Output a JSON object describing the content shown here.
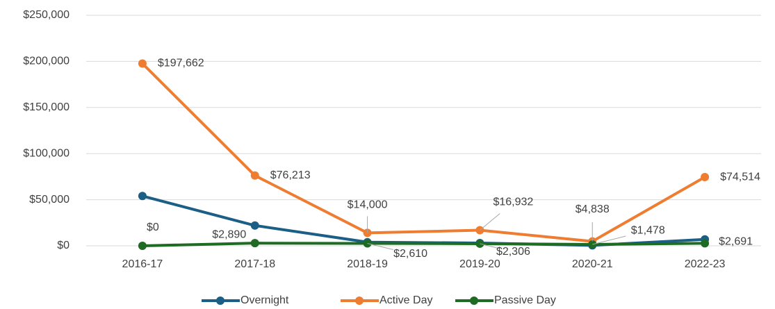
{
  "chart_data": {
    "type": "line",
    "categories": [
      "2016-17",
      "2017-18",
      "2018-19",
      "2019-20",
      "2020-21",
      "2022-23"
    ],
    "series": [
      {
        "name": "Overnight",
        "color": "#1b5e86",
        "values": [
          54000,
          22000,
          4000,
          3000,
          500,
          7000
        ]
      },
      {
        "name": "Active Day",
        "color": "#ee7d31",
        "values": [
          197662,
          76213,
          14000,
          16932,
          4838,
          74514
        ],
        "value_labels": [
          "$197,662",
          "$76,213",
          "$14,000",
          "$16,932",
          "$4,838",
          "$74,514"
        ]
      },
      {
        "name": "Passive Day",
        "color": "#1e6b23",
        "values": [
          0,
          2890,
          2610,
          2306,
          1478,
          2691
        ],
        "value_labels": [
          "$0",
          "$2,890",
          "$2,610",
          "$2,306",
          "$1,478",
          "$2,691"
        ]
      }
    ],
    "ylim": [
      0,
      250000
    ],
    "yticks": [
      {
        "value": 0,
        "label": "$0"
      },
      {
        "value": 50000,
        "label": "$50,000"
      },
      {
        "value": 100000,
        "label": "$100,000"
      },
      {
        "value": 150000,
        "label": "$150,000"
      },
      {
        "value": 200000,
        "label": "$200,000"
      },
      {
        "value": 250000,
        "label": "$250,000"
      }
    ],
    "grid": true,
    "legend": "bottom"
  }
}
